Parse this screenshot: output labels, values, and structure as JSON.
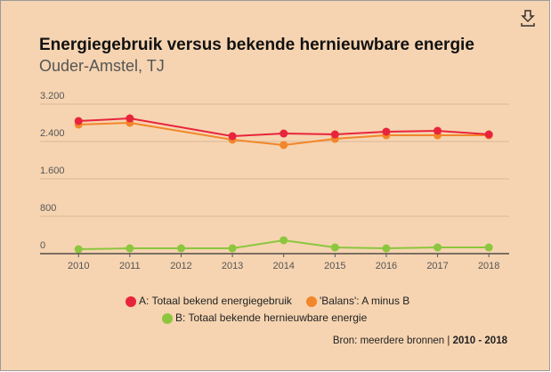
{
  "chart_data": {
    "type": "line",
    "title": "Energiegebruik versus bekende hernieuwbare energie",
    "subtitle": "Ouder-Amstel, TJ",
    "xlim": [
      2009.25,
      2018.5
    ],
    "xticks": [
      2010,
      2011,
      2012,
      2013,
      2014,
      2015,
      2016,
      2017,
      2018
    ],
    "ylim": [
      0,
      3200
    ],
    "yticks": [
      0,
      800,
      {
        "value": 1600,
        "label": "1.600"
      },
      {
        "value": 2400,
        "label": "2.400"
      },
      {
        "value": 3200,
        "label": "3.200"
      }
    ],
    "grid": true,
    "series": [
      {
        "name": "A: Totaal bekend energiegebruik",
        "color": "#e8243c",
        "x": [
          2010,
          2011,
          2013,
          2014,
          2015,
          2016,
          2017,
          2018
        ],
        "values": [
          2838,
          2895,
          2514,
          2571,
          2552,
          2610,
          2629,
          2552
        ]
      },
      {
        "name": "'Balans': A minus B",
        "color": "#f2862a",
        "x": [
          2010,
          2011,
          2013,
          2014,
          2015,
          2016,
          2017,
          2018
        ],
        "values": [
          2762,
          2800,
          2438,
          2324,
          2457,
          2533,
          2533,
          2533
        ]
      },
      {
        "name": "B: Totaal bekende hernieuwbare energie",
        "color": "#8cc63e",
        "x": [
          2010,
          2011,
          2012,
          2013,
          2014,
          2015,
          2016,
          2017,
          2018
        ],
        "values": [
          95,
          114,
          114,
          114,
          286,
          133,
          114,
          133,
          133
        ]
      }
    ],
    "source": "Bron: meerdere bronnen",
    "separator": "|",
    "period": "2010 - 2018"
  }
}
